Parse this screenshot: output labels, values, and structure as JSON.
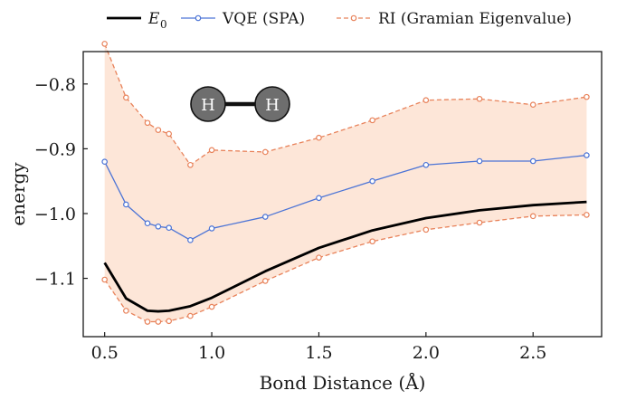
{
  "chart_data": {
    "type": "line",
    "xlabel": "Bond Distance (Å)",
    "ylabel": "energy",
    "xlim": [
      0.4,
      2.82
    ],
    "ylim": [
      -1.19,
      -0.75
    ],
    "x_ticks": [
      0.5,
      1.0,
      1.5,
      2.0,
      2.5
    ],
    "x_tick_labels": [
      "0.5",
      "1.0",
      "1.5",
      "2.0",
      "2.5"
    ],
    "y_ticks": [
      -0.8,
      -0.9,
      -1.0,
      -1.1
    ],
    "y_tick_labels": [
      "−0.8",
      "−0.9",
      "−1.0",
      "−1.1"
    ],
    "legend": {
      "placement": "above",
      "entries": [
        {
          "label_main": "E",
          "label_sub": "0",
          "series": "E0"
        },
        {
          "label_main": "VQE (SPA)",
          "label_sub": "",
          "series": "VQE"
        },
        {
          "label_main": "RI (Gramian Eigenvalue)",
          "label_sub": "",
          "series": "RI"
        }
      ]
    },
    "series": [
      {
        "key": "E0",
        "color": "#000000",
        "style": "solid",
        "marker": "none",
        "x": [
          0.5,
          0.6,
          0.7,
          0.75,
          0.8,
          0.9,
          1.0,
          1.25,
          1.5,
          1.75,
          2.0,
          2.25,
          2.5,
          2.75
        ],
        "y": [
          -1.076,
          -1.131,
          -1.15,
          -1.151,
          -1.15,
          -1.143,
          -1.13,
          -1.089,
          -1.053,
          -1.026,
          -1.007,
          -0.995,
          -0.987,
          -0.982
        ]
      },
      {
        "key": "VQE",
        "color": "#4c74d6",
        "style": "solid",
        "marker": "circle",
        "x": [
          0.5,
          0.6,
          0.7,
          0.75,
          0.8,
          0.9,
          1.0,
          1.25,
          1.5,
          1.75,
          2.0,
          2.25,
          2.5,
          2.75
        ],
        "y": [
          -0.92,
          -0.986,
          -1.015,
          -1.02,
          -1.022,
          -1.041,
          -1.023,
          -1.005,
          -0.976,
          -0.95,
          -0.925,
          -0.919,
          -0.919,
          -0.91
        ]
      },
      {
        "key": "RI_upper",
        "color": "#e8825a",
        "style": "dashed",
        "marker": "circle",
        "x": [
          0.5,
          0.6,
          0.7,
          0.75,
          0.8,
          0.9,
          1.0,
          1.25,
          1.5,
          1.75,
          2.0,
          2.25,
          2.5,
          2.75
        ],
        "y": [
          -0.738,
          -0.821,
          -0.86,
          -0.871,
          -0.877,
          -0.925,
          -0.902,
          -0.905,
          -0.883,
          -0.856,
          -0.825,
          -0.823,
          -0.832,
          -0.82
        ]
      },
      {
        "key": "RI_lower",
        "color": "#e8825a",
        "style": "dashed",
        "marker": "circle",
        "x": [
          0.5,
          0.6,
          0.7,
          0.75,
          0.8,
          0.9,
          1.0,
          1.25,
          1.5,
          1.75,
          2.0,
          2.25,
          2.5,
          2.75
        ],
        "y": [
          -1.102,
          -1.15,
          -1.167,
          -1.167,
          -1.166,
          -1.158,
          -1.144,
          -1.104,
          -1.068,
          -1.043,
          -1.025,
          -1.014,
          -1.004,
          -1.002
        ]
      }
    ],
    "band": {
      "between": [
        "RI_upper",
        "RI_lower"
      ],
      "color": "#fde6d8"
    },
    "grid": false,
    "inset": {
      "atoms": [
        "H",
        "H"
      ],
      "atom_color": "#6e6e6e"
    }
  }
}
